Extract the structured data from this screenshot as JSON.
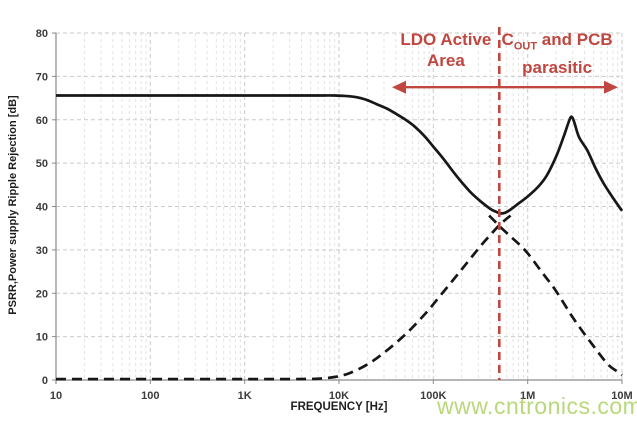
{
  "chart_data": {
    "type": "line",
    "title": "",
    "xlabel": "FREQUENCY [Hz]",
    "ylabel": "PSRR,Power supply Ripple Rejection [dB]",
    "x_scale": "log",
    "xlim": [
      10,
      10000000
    ],
    "ylim": [
      0,
      80
    ],
    "y_ticks": [
      0,
      10,
      20,
      30,
      40,
      50,
      60,
      70,
      80
    ],
    "x_ticks": [
      {
        "f": 10,
        "label": "10"
      },
      {
        "f": 100,
        "label": "100"
      },
      {
        "f": 1000,
        "label": "1K"
      },
      {
        "f": 10000,
        "label": "10K"
      },
      {
        "f": 100000,
        "label": "100K"
      },
      {
        "f": 1000000,
        "label": "1M"
      },
      {
        "f": 10000000,
        "label": "10M"
      }
    ],
    "grid": "dashed",
    "legend": "none",
    "series": [
      {
        "name": "psrr-solid-curve",
        "style": "solid",
        "color": "#171717",
        "points": [
          [
            10,
            65.6
          ],
          [
            100,
            65.6
          ],
          [
            1000,
            65.6
          ],
          [
            5000,
            65.6
          ],
          [
            9000,
            65.6
          ],
          [
            13000,
            65.4
          ],
          [
            16000,
            65.1
          ],
          [
            20000,
            64.5
          ],
          [
            25000,
            63.6
          ],
          [
            32000,
            62.6
          ],
          [
            40000,
            61.4
          ],
          [
            50000,
            60.1
          ],
          [
            63000,
            58.5
          ],
          [
            80000,
            56.3
          ],
          [
            100000,
            53.8
          ],
          [
            130000,
            50.8
          ],
          [
            160000,
            48.2
          ],
          [
            200000,
            45.6
          ],
          [
            250000,
            43.2
          ],
          [
            320000,
            41.1
          ],
          [
            400000,
            39.5
          ],
          [
            460000,
            38.8
          ],
          [
            520000,
            38.4
          ],
          [
            580000,
            38.6
          ],
          [
            650000,
            39.2
          ],
          [
            800000,
            40.7
          ],
          [
            1000000,
            42.3
          ],
          [
            1300000,
            44.6
          ],
          [
            1600000,
            47.2
          ],
          [
            2000000,
            51.5
          ],
          [
            2400000,
            56
          ],
          [
            2700000,
            59.3
          ],
          [
            2900000,
            60.7
          ],
          [
            3100000,
            59.6
          ],
          [
            3500000,
            56
          ],
          [
            4300000,
            52.9
          ],
          [
            5200000,
            49
          ],
          [
            6400000,
            45.3
          ],
          [
            7800000,
            42.4
          ],
          [
            10000000,
            39
          ]
        ]
      },
      {
        "name": "dashed-curve-rising",
        "style": "dashed",
        "color": "#171717",
        "points": [
          [
            10,
            0.2
          ],
          [
            100,
            0.2
          ],
          [
            1000,
            0.2
          ],
          [
            3000,
            0.2
          ],
          [
            6000,
            0.3
          ],
          [
            9000,
            0.7
          ],
          [
            13000,
            1.6
          ],
          [
            20000,
            3.6
          ],
          [
            30000,
            6.3
          ],
          [
            50000,
            10.4
          ],
          [
            80000,
            15
          ],
          [
            120000,
            19.6
          ],
          [
            200000,
            25.5
          ],
          [
            320000,
            31
          ],
          [
            420000,
            33.9
          ],
          [
            500000,
            35.7
          ],
          [
            600000,
            37.2
          ],
          [
            660000,
            37.9
          ]
        ]
      },
      {
        "name": "dashed-curve-falling",
        "style": "dashed",
        "color": "#171717",
        "points": [
          [
            390000,
            37.9
          ],
          [
            440000,
            36.8
          ],
          [
            500000,
            35.5
          ],
          [
            650000,
            33.2
          ],
          [
            830000,
            31.1
          ],
          [
            1000000,
            29.2
          ],
          [
            1400000,
            25
          ],
          [
            2000000,
            20.5
          ],
          [
            3100000,
            14
          ],
          [
            5000000,
            7.8
          ],
          [
            7100000,
            3.6
          ],
          [
            9000000,
            1.9
          ],
          [
            10000000,
            1.1
          ]
        ]
      }
    ],
    "annotations": {
      "vline": {
        "f": 500000,
        "color": "#c0473f",
        "style": "dashed"
      },
      "arrow": {
        "f_start": 36500,
        "f_end": 9070000,
        "dB": 67.5,
        "color": "#c0473f",
        "double_headed": true
      },
      "labels": [
        {
          "id": "ldo",
          "lines": [
            "LDO Active",
            "Area"
          ],
          "f_center": 136000,
          "color": "#c0473f"
        },
        {
          "id": "cout",
          "line1_pre": "C",
          "line1_sub": "OUT",
          "line1_post": " and PCB",
          "line2": "parasitic",
          "f_center": 2050000,
          "color": "#c0473f"
        }
      ]
    }
  },
  "watermark": {
    "text": "www.cntronics.com",
    "color": "#b5d673"
  }
}
